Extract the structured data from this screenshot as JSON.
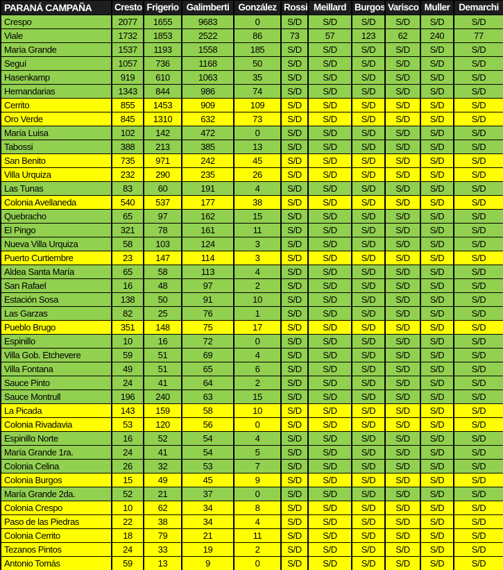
{
  "chart_data": {
    "type": "table",
    "title": "PARANÁ CAMPAÑA",
    "columns": [
      "Cresto",
      "Frigerio",
      "Galimberti",
      "González",
      "Rossi",
      "Meillard",
      "Burgos",
      "Varisco",
      "Muller",
      "Demarchi"
    ],
    "no_data_label": "S/D",
    "rows": [
      {
        "name": "Crespo",
        "row_color": "green",
        "values": [
          2077,
          1655,
          9683,
          0,
          "S/D",
          "S/D",
          "S/D",
          "S/D",
          "S/D",
          "S/D"
        ]
      },
      {
        "name": "Viale",
        "row_color": "green",
        "values": [
          1732,
          1853,
          2522,
          86,
          73,
          57,
          123,
          62,
          240,
          77
        ]
      },
      {
        "name": "María Grande",
        "row_color": "green",
        "values": [
          1537,
          1193,
          1558,
          185,
          "S/D",
          "S/D",
          "S/D",
          "S/D",
          "S/D",
          "S/D"
        ]
      },
      {
        "name": "Seguí",
        "row_color": "green",
        "values": [
          1057,
          736,
          1168,
          50,
          "S/D",
          "S/D",
          "S/D",
          "S/D",
          "S/D",
          "S/D"
        ]
      },
      {
        "name": "Hasenkamp",
        "row_color": "green",
        "values": [
          919,
          610,
          1063,
          35,
          "S/D",
          "S/D",
          "S/D",
          "S/D",
          "S/D",
          "S/D"
        ]
      },
      {
        "name": "Hernandarias",
        "row_color": "green",
        "values": [
          1343,
          844,
          986,
          74,
          "S/D",
          "S/D",
          "S/D",
          "S/D",
          "S/D",
          "S/D"
        ]
      },
      {
        "name": "Cerrito",
        "row_color": "yellow",
        "values": [
          855,
          1453,
          909,
          109,
          "S/D",
          "S/D",
          "S/D",
          "S/D",
          "S/D",
          "S/D"
        ]
      },
      {
        "name": "Oro Verde",
        "row_color": "yellow",
        "values": [
          845,
          1310,
          632,
          73,
          "S/D",
          "S/D",
          "S/D",
          "S/D",
          "S/D",
          "S/D"
        ]
      },
      {
        "name": "María Luisa",
        "row_color": "green",
        "values": [
          102,
          142,
          472,
          0,
          "S/D",
          "S/D",
          "S/D",
          "S/D",
          "S/D",
          "S/D"
        ]
      },
      {
        "name": "Tabossi",
        "row_color": "green",
        "values": [
          388,
          213,
          385,
          13,
          "S/D",
          "S/D",
          "S/D",
          "S/D",
          "S/D",
          "S/D"
        ]
      },
      {
        "name": "San Benito",
        "row_color": "yellow",
        "values": [
          735,
          971,
          242,
          45,
          "S/D",
          "S/D",
          "S/D",
          "S/D",
          "S/D",
          "S/D"
        ]
      },
      {
        "name": "Villa Urquiza",
        "row_color": "yellow",
        "values": [
          232,
          290,
          235,
          26,
          "S/D",
          "S/D",
          "S/D",
          "S/D",
          "S/D",
          "S/D"
        ]
      },
      {
        "name": "Las Tunas",
        "row_color": "green",
        "values": [
          83,
          60,
          191,
          4,
          "S/D",
          "S/D",
          "S/D",
          "S/D",
          "S/D",
          "S/D"
        ]
      },
      {
        "name": "Colonia Avellaneda",
        "row_color": "yellow",
        "values": [
          540,
          537,
          177,
          38,
          "S/D",
          "S/D",
          "S/D",
          "S/D",
          "S/D",
          "S/D"
        ]
      },
      {
        "name": "Quebracho",
        "row_color": "green",
        "values": [
          65,
          97,
          162,
          15,
          "S/D",
          "S/D",
          "S/D",
          "S/D",
          "S/D",
          "S/D"
        ]
      },
      {
        "name": "El Pingo",
        "row_color": "green",
        "values": [
          321,
          78,
          161,
          11,
          "S/D",
          "S/D",
          "S/D",
          "S/D",
          "S/D",
          "S/D"
        ]
      },
      {
        "name": "Nueva Villa Urquiza",
        "row_color": "green",
        "values": [
          58,
          103,
          124,
          3,
          "S/D",
          "S/D",
          "S/D",
          "S/D",
          "S/D",
          "S/D"
        ]
      },
      {
        "name": "Puerto Curtiembre",
        "row_color": "yellow",
        "values": [
          23,
          147,
          114,
          3,
          "S/D",
          "S/D",
          "S/D",
          "S/D",
          "S/D",
          "S/D"
        ]
      },
      {
        "name": "Aldea Santa María",
        "row_color": "green",
        "values": [
          65,
          58,
          113,
          4,
          "S/D",
          "S/D",
          "S/D",
          "S/D",
          "S/D",
          "S/D"
        ]
      },
      {
        "name": "San Rafael",
        "row_color": "green",
        "values": [
          16,
          48,
          97,
          2,
          "S/D",
          "S/D",
          "S/D",
          "S/D",
          "S/D",
          "S/D"
        ]
      },
      {
        "name": "Estación Sosa",
        "row_color": "green",
        "values": [
          138,
          50,
          91,
          10,
          "S/D",
          "S/D",
          "S/D",
          "S/D",
          "S/D",
          "S/D"
        ]
      },
      {
        "name": "Las Garzas",
        "row_color": "green",
        "values": [
          82,
          25,
          76,
          1,
          "S/D",
          "S/D",
          "S/D",
          "S/D",
          "S/D",
          "S/D"
        ]
      },
      {
        "name": "Pueblo Brugo",
        "row_color": "yellow",
        "values": [
          351,
          148,
          75,
          17,
          "S/D",
          "S/D",
          "S/D",
          "S/D",
          "S/D",
          "S/D"
        ]
      },
      {
        "name": "Espinillo",
        "row_color": "green",
        "values": [
          10,
          16,
          72,
          0,
          "S/D",
          "S/D",
          "S/D",
          "S/D",
          "S/D",
          "S/D"
        ]
      },
      {
        "name": "Villa Gob. Etchevere",
        "row_color": "green",
        "values": [
          59,
          51,
          69,
          4,
          "S/D",
          "S/D",
          "S/D",
          "S/D",
          "S/D",
          "S/D"
        ]
      },
      {
        "name": "Villa Fontana",
        "row_color": "green",
        "values": [
          49,
          51,
          65,
          6,
          "S/D",
          "S/D",
          "S/D",
          "S/D",
          "S/D",
          "S/D"
        ]
      },
      {
        "name": "Sauce Pinto",
        "row_color": "green",
        "values": [
          24,
          41,
          64,
          2,
          "S/D",
          "S/D",
          "S/D",
          "S/D",
          "S/D",
          "S/D"
        ]
      },
      {
        "name": "Sauce Montrull",
        "row_color": "green",
        "values": [
          196,
          240,
          63,
          15,
          "S/D",
          "S/D",
          "S/D",
          "S/D",
          "S/D",
          "S/D"
        ]
      },
      {
        "name": "La Picada",
        "row_color": "yellow",
        "values": [
          143,
          159,
          58,
          10,
          "S/D",
          "S/D",
          "S/D",
          "S/D",
          "S/D",
          "S/D"
        ]
      },
      {
        "name": "Colonia Rivadavia",
        "row_color": "yellow",
        "values": [
          53,
          120,
          56,
          0,
          "S/D",
          "S/D",
          "S/D",
          "S/D",
          "S/D",
          "S/D"
        ]
      },
      {
        "name": "Espinillo Norte",
        "row_color": "green",
        "values": [
          16,
          52,
          54,
          4,
          "S/D",
          "S/D",
          "S/D",
          "S/D",
          "S/D",
          "S/D"
        ]
      },
      {
        "name": "María Grande 1ra.",
        "row_color": "green",
        "values": [
          24,
          41,
          54,
          5,
          "S/D",
          "S/D",
          "S/D",
          "S/D",
          "S/D",
          "S/D"
        ]
      },
      {
        "name": "Colonia Celina",
        "row_color": "green",
        "values": [
          26,
          32,
          53,
          7,
          "S/D",
          "S/D",
          "S/D",
          "S/D",
          "S/D",
          "S/D"
        ]
      },
      {
        "name": "Colonia Burgos",
        "row_color": "yellow",
        "values": [
          15,
          49,
          45,
          9,
          "S/D",
          "S/D",
          "S/D",
          "S/D",
          "S/D",
          "S/D"
        ]
      },
      {
        "name": "María Grande 2da.",
        "row_color": "green",
        "values": [
          52,
          21,
          37,
          0,
          "S/D",
          "S/D",
          "S/D",
          "S/D",
          "S/D",
          "S/D"
        ]
      },
      {
        "name": "Colonia Crespo",
        "row_color": "yellow",
        "values": [
          10,
          62,
          34,
          8,
          "S/D",
          "S/D",
          "S/D",
          "S/D",
          "S/D",
          "S/D"
        ]
      },
      {
        "name": "Paso de las Piedras",
        "row_color": "yellow",
        "values": [
          22,
          38,
          34,
          4,
          "S/D",
          "S/D",
          "S/D",
          "S/D",
          "S/D",
          "S/D"
        ]
      },
      {
        "name": "Colonia Cerrito",
        "row_color": "yellow",
        "values": [
          18,
          79,
          21,
          11,
          "S/D",
          "S/D",
          "S/D",
          "S/D",
          "S/D",
          "S/D"
        ]
      },
      {
        "name": "Tezanos Pintos",
        "row_color": "yellow",
        "values": [
          24,
          33,
          19,
          2,
          "S/D",
          "S/D",
          "S/D",
          "S/D",
          "S/D",
          "S/D"
        ]
      },
      {
        "name": "Antonio Tomás",
        "row_color": "yellow",
        "values": [
          59,
          13,
          9,
          0,
          "S/D",
          "S/D",
          "S/D",
          "S/D",
          "S/D",
          "S/D"
        ]
      }
    ]
  },
  "colors": {
    "green": "#92D050",
    "yellow": "#FFFF00",
    "header_bg": "#1E1E1E",
    "header_text": "#FFFFFF",
    "border": "#000000",
    "cell_text": "#000000"
  }
}
